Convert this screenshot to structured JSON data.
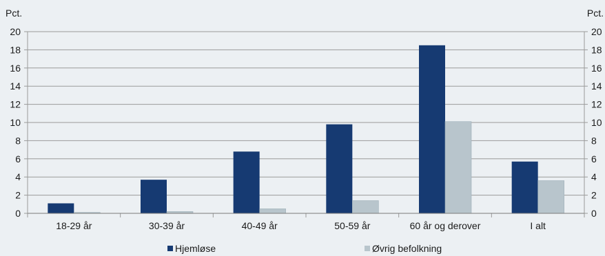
{
  "chart_data": {
    "type": "bar",
    "categories": [
      "18-29 år",
      "30-39 år",
      "40-49 år",
      "50-59 år",
      "60 år og derover",
      "I alt"
    ],
    "series": [
      {
        "name": "Hjemløse",
        "values": [
          1.1,
          3.7,
          6.8,
          9.8,
          18.5,
          5.7
        ]
      },
      {
        "name": "Øvrig befolkning",
        "values": [
          0.1,
          0.2,
          0.5,
          1.4,
          10.1,
          3.6
        ]
      }
    ],
    "ylabel_left": "Pct.",
    "ylabel_right": "Pct.",
    "ylim": [
      0,
      20
    ],
    "yticks": [
      0,
      2,
      4,
      6,
      8,
      10,
      12,
      14,
      16,
      18,
      20
    ],
    "grid": true,
    "legend": "bottom"
  },
  "colors": {
    "series": [
      "#163a72",
      "#b8c5cc"
    ],
    "background": "#ecf0f3",
    "grid": "#9a9a9a"
  }
}
